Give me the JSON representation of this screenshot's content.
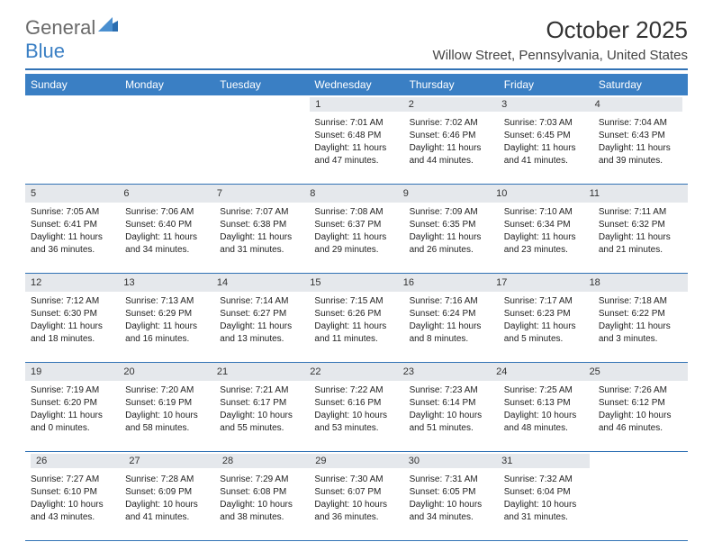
{
  "logo": {
    "part1": "General",
    "part2": "Blue"
  },
  "title": "October 2025",
  "location": "Willow Street, Pennsylvania, United States",
  "colors": {
    "header_bar": "#3a7fc4",
    "divider": "#3172b5",
    "daynum_bg": "#e5e8ec",
    "text": "#222222",
    "logo_gray": "#6a6a6a",
    "logo_blue": "#3a7fc4"
  },
  "weekdays": [
    "Sunday",
    "Monday",
    "Tuesday",
    "Wednesday",
    "Thursday",
    "Friday",
    "Saturday"
  ],
  "weeks": [
    {
      "nums": [
        "",
        "",
        "",
        "1",
        "2",
        "3",
        "4"
      ],
      "days": [
        null,
        null,
        null,
        {
          "sunrise": "Sunrise: 7:01 AM",
          "sunset": "Sunset: 6:48 PM",
          "d1": "Daylight: 11 hours",
          "d2": "and 47 minutes."
        },
        {
          "sunrise": "Sunrise: 7:02 AM",
          "sunset": "Sunset: 6:46 PM",
          "d1": "Daylight: 11 hours",
          "d2": "and 44 minutes."
        },
        {
          "sunrise": "Sunrise: 7:03 AM",
          "sunset": "Sunset: 6:45 PM",
          "d1": "Daylight: 11 hours",
          "d2": "and 41 minutes."
        },
        {
          "sunrise": "Sunrise: 7:04 AM",
          "sunset": "Sunset: 6:43 PM",
          "d1": "Daylight: 11 hours",
          "d2": "and 39 minutes."
        }
      ]
    },
    {
      "nums": [
        "5",
        "6",
        "7",
        "8",
        "9",
        "10",
        "11"
      ],
      "days": [
        {
          "sunrise": "Sunrise: 7:05 AM",
          "sunset": "Sunset: 6:41 PM",
          "d1": "Daylight: 11 hours",
          "d2": "and 36 minutes."
        },
        {
          "sunrise": "Sunrise: 7:06 AM",
          "sunset": "Sunset: 6:40 PM",
          "d1": "Daylight: 11 hours",
          "d2": "and 34 minutes."
        },
        {
          "sunrise": "Sunrise: 7:07 AM",
          "sunset": "Sunset: 6:38 PM",
          "d1": "Daylight: 11 hours",
          "d2": "and 31 minutes."
        },
        {
          "sunrise": "Sunrise: 7:08 AM",
          "sunset": "Sunset: 6:37 PM",
          "d1": "Daylight: 11 hours",
          "d2": "and 29 minutes."
        },
        {
          "sunrise": "Sunrise: 7:09 AM",
          "sunset": "Sunset: 6:35 PM",
          "d1": "Daylight: 11 hours",
          "d2": "and 26 minutes."
        },
        {
          "sunrise": "Sunrise: 7:10 AM",
          "sunset": "Sunset: 6:34 PM",
          "d1": "Daylight: 11 hours",
          "d2": "and 23 minutes."
        },
        {
          "sunrise": "Sunrise: 7:11 AM",
          "sunset": "Sunset: 6:32 PM",
          "d1": "Daylight: 11 hours",
          "d2": "and 21 minutes."
        }
      ]
    },
    {
      "nums": [
        "12",
        "13",
        "14",
        "15",
        "16",
        "17",
        "18"
      ],
      "days": [
        {
          "sunrise": "Sunrise: 7:12 AM",
          "sunset": "Sunset: 6:30 PM",
          "d1": "Daylight: 11 hours",
          "d2": "and 18 minutes."
        },
        {
          "sunrise": "Sunrise: 7:13 AM",
          "sunset": "Sunset: 6:29 PM",
          "d1": "Daylight: 11 hours",
          "d2": "and 16 minutes."
        },
        {
          "sunrise": "Sunrise: 7:14 AM",
          "sunset": "Sunset: 6:27 PM",
          "d1": "Daylight: 11 hours",
          "d2": "and 13 minutes."
        },
        {
          "sunrise": "Sunrise: 7:15 AM",
          "sunset": "Sunset: 6:26 PM",
          "d1": "Daylight: 11 hours",
          "d2": "and 11 minutes."
        },
        {
          "sunrise": "Sunrise: 7:16 AM",
          "sunset": "Sunset: 6:24 PM",
          "d1": "Daylight: 11 hours",
          "d2": "and 8 minutes."
        },
        {
          "sunrise": "Sunrise: 7:17 AM",
          "sunset": "Sunset: 6:23 PM",
          "d1": "Daylight: 11 hours",
          "d2": "and 5 minutes."
        },
        {
          "sunrise": "Sunrise: 7:18 AM",
          "sunset": "Sunset: 6:22 PM",
          "d1": "Daylight: 11 hours",
          "d2": "and 3 minutes."
        }
      ]
    },
    {
      "nums": [
        "19",
        "20",
        "21",
        "22",
        "23",
        "24",
        "25"
      ],
      "days": [
        {
          "sunrise": "Sunrise: 7:19 AM",
          "sunset": "Sunset: 6:20 PM",
          "d1": "Daylight: 11 hours",
          "d2": "and 0 minutes."
        },
        {
          "sunrise": "Sunrise: 7:20 AM",
          "sunset": "Sunset: 6:19 PM",
          "d1": "Daylight: 10 hours",
          "d2": "and 58 minutes."
        },
        {
          "sunrise": "Sunrise: 7:21 AM",
          "sunset": "Sunset: 6:17 PM",
          "d1": "Daylight: 10 hours",
          "d2": "and 55 minutes."
        },
        {
          "sunrise": "Sunrise: 7:22 AM",
          "sunset": "Sunset: 6:16 PM",
          "d1": "Daylight: 10 hours",
          "d2": "and 53 minutes."
        },
        {
          "sunrise": "Sunrise: 7:23 AM",
          "sunset": "Sunset: 6:14 PM",
          "d1": "Daylight: 10 hours",
          "d2": "and 51 minutes."
        },
        {
          "sunrise": "Sunrise: 7:25 AM",
          "sunset": "Sunset: 6:13 PM",
          "d1": "Daylight: 10 hours",
          "d2": "and 48 minutes."
        },
        {
          "sunrise": "Sunrise: 7:26 AM",
          "sunset": "Sunset: 6:12 PM",
          "d1": "Daylight: 10 hours",
          "d2": "and 46 minutes."
        }
      ]
    },
    {
      "nums": [
        "26",
        "27",
        "28",
        "29",
        "30",
        "31",
        ""
      ],
      "days": [
        {
          "sunrise": "Sunrise: 7:27 AM",
          "sunset": "Sunset: 6:10 PM",
          "d1": "Daylight: 10 hours",
          "d2": "and 43 minutes."
        },
        {
          "sunrise": "Sunrise: 7:28 AM",
          "sunset": "Sunset: 6:09 PM",
          "d1": "Daylight: 10 hours",
          "d2": "and 41 minutes."
        },
        {
          "sunrise": "Sunrise: 7:29 AM",
          "sunset": "Sunset: 6:08 PM",
          "d1": "Daylight: 10 hours",
          "d2": "and 38 minutes."
        },
        {
          "sunrise": "Sunrise: 7:30 AM",
          "sunset": "Sunset: 6:07 PM",
          "d1": "Daylight: 10 hours",
          "d2": "and 36 minutes."
        },
        {
          "sunrise": "Sunrise: 7:31 AM",
          "sunset": "Sunset: 6:05 PM",
          "d1": "Daylight: 10 hours",
          "d2": "and 34 minutes."
        },
        {
          "sunrise": "Sunrise: 7:32 AM",
          "sunset": "Sunset: 6:04 PM",
          "d1": "Daylight: 10 hours",
          "d2": "and 31 minutes."
        },
        null
      ]
    }
  ]
}
